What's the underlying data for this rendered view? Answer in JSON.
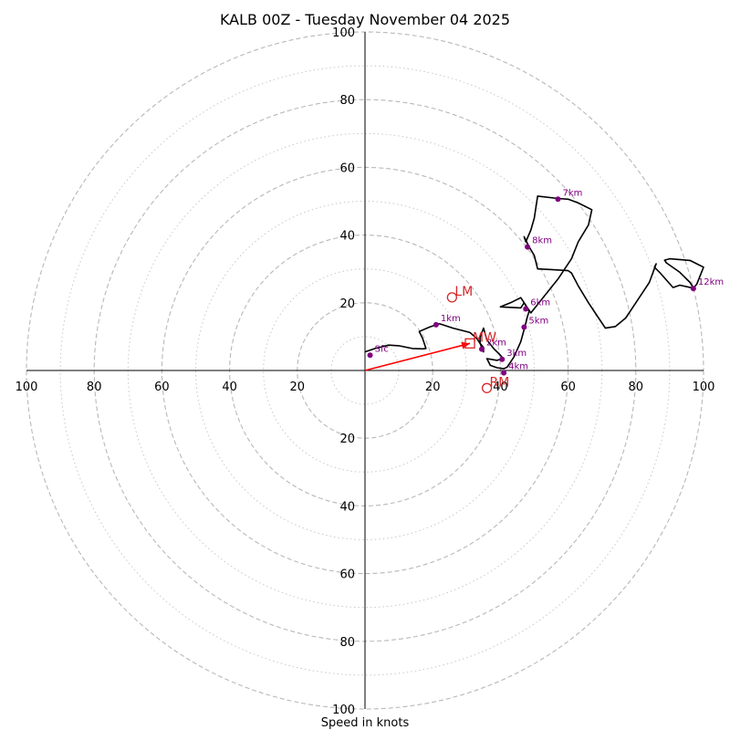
{
  "chart_data": {
    "type": "hodograph",
    "title": "KALB 00Z - Tuesday November 04 2025",
    "xlabel": "Speed in knots",
    "range": [
      -100,
      100
    ],
    "ring_spacing": 10,
    "x_tick_labels": [
      "100",
      "80",
      "60",
      "40",
      "20",
      "20",
      "40",
      "60",
      "80",
      "100"
    ],
    "y_tick_labels": [
      "100",
      "80",
      "60",
      "40",
      "20",
      "20",
      "40",
      "60",
      "80",
      "100"
    ],
    "colors": {
      "trace": "#000000",
      "height_points": "#800080",
      "markers": "#d62728",
      "shear_vector": "#ff0000",
      "grid": "#b0b0b0"
    },
    "trace": [
      [
        0,
        5.5
      ],
      [
        3,
        6.5
      ],
      [
        7,
        7.5
      ],
      [
        10,
        7.3
      ],
      [
        14,
        6.5
      ],
      [
        17,
        6.4
      ],
      [
        18,
        6.5
      ],
      [
        17,
        9.5
      ],
      [
        16,
        11.5
      ],
      [
        19,
        12.8
      ],
      [
        22,
        13.8
      ],
      [
        26,
        12.5
      ],
      [
        31,
        11.2
      ],
      [
        33,
        9.5
      ],
      [
        34,
        8
      ],
      [
        35,
        6.8
      ],
      [
        35,
        5.5
      ],
      [
        34,
        8
      ],
      [
        34,
        9.8
      ],
      [
        35,
        12.5
      ],
      [
        36,
        9
      ],
      [
        38,
        6.5
      ],
      [
        40,
        4.5
      ],
      [
        40.8,
        3.5
      ],
      [
        39,
        3
      ],
      [
        36,
        3.5
      ],
      [
        37,
        1.5
      ],
      [
        39,
        0.8
      ],
      [
        41,
        0.5
      ],
      [
        42,
        1
      ],
      [
        44,
        4
      ],
      [
        46,
        8.5
      ],
      [
        47.2,
        12.8
      ],
      [
        48,
        16
      ],
      [
        48.5,
        17.5
      ],
      [
        47,
        20
      ],
      [
        46,
        18.5
      ],
      [
        40,
        18.8
      ],
      [
        43,
        20
      ],
      [
        46,
        21.5
      ],
      [
        49,
        17
      ],
      [
        53,
        22
      ],
      [
        57,
        27
      ],
      [
        61,
        33
      ],
      [
        63,
        38
      ],
      [
        66,
        43
      ],
      [
        67,
        47.5
      ],
      [
        63,
        49.5
      ],
      [
        60,
        50.6
      ],
      [
        57,
        50.8
      ],
      [
        51,
        51.5
      ],
      [
        50,
        45
      ],
      [
        49,
        41.5
      ],
      [
        47.5,
        38
      ],
      [
        47,
        39.5
      ],
      [
        48.5,
        36.5
      ],
      [
        50,
        34
      ],
      [
        51,
        30
      ],
      [
        55,
        29.8
      ],
      [
        60,
        29.5
      ],
      [
        61,
        28.8
      ],
      [
        63,
        25
      ],
      [
        66,
        20
      ],
      [
        69,
        15.5
      ],
      [
        71,
        12.5
      ],
      [
        74,
        13
      ],
      [
        77,
        15.5
      ],
      [
        80,
        20
      ],
      [
        82,
        23
      ],
      [
        84,
        26
      ],
      [
        86,
        31.5
      ],
      [
        85.5,
        30.5
      ],
      [
        87,
        29
      ],
      [
        91,
        24.5
      ],
      [
        93,
        25.2
      ],
      [
        97,
        24.3
      ],
      [
        98,
        25.5
      ],
      [
        100,
        30.5
      ],
      [
        96,
        32.5
      ],
      [
        90,
        33
      ],
      [
        88.5,
        32.6
      ],
      [
        89,
        31.8
      ],
      [
        93,
        29
      ],
      [
        96,
        26
      ],
      [
        97,
        24.3
      ]
    ],
    "height_points": [
      {
        "label": "Sfc",
        "u": 1.5,
        "v": 4.5
      },
      {
        "label": "1km",
        "u": 21,
        "v": 13.5
      },
      {
        "label": "2km",
        "u": 34.5,
        "v": 6.3
      },
      {
        "label": "3km",
        "u": 40.5,
        "v": 3.3
      },
      {
        "label": "4km",
        "u": 41,
        "v": -0.7
      },
      {
        "label": "5km",
        "u": 47,
        "v": 12.8
      },
      {
        "label": "6km",
        "u": 47.5,
        "v": 18.2
      },
      {
        "label": "7km",
        "u": 57,
        "v": 50.6
      },
      {
        "label": "8km",
        "u": 48,
        "v": 36.5
      },
      {
        "label": "12km",
        "u": 97,
        "v": 24.2
      }
    ],
    "markers": [
      {
        "label": "LM",
        "u": 25.7,
        "v": 21.6,
        "shape": "circle"
      },
      {
        "label": "RM",
        "u": 36,
        "v": -5.2,
        "shape": "circle"
      },
      {
        "label": "MW",
        "u": 31,
        "v": 8,
        "shape": "square"
      }
    ],
    "shear_vector": {
      "from": [
        0,
        0
      ],
      "to": [
        31,
        8
      ]
    }
  }
}
